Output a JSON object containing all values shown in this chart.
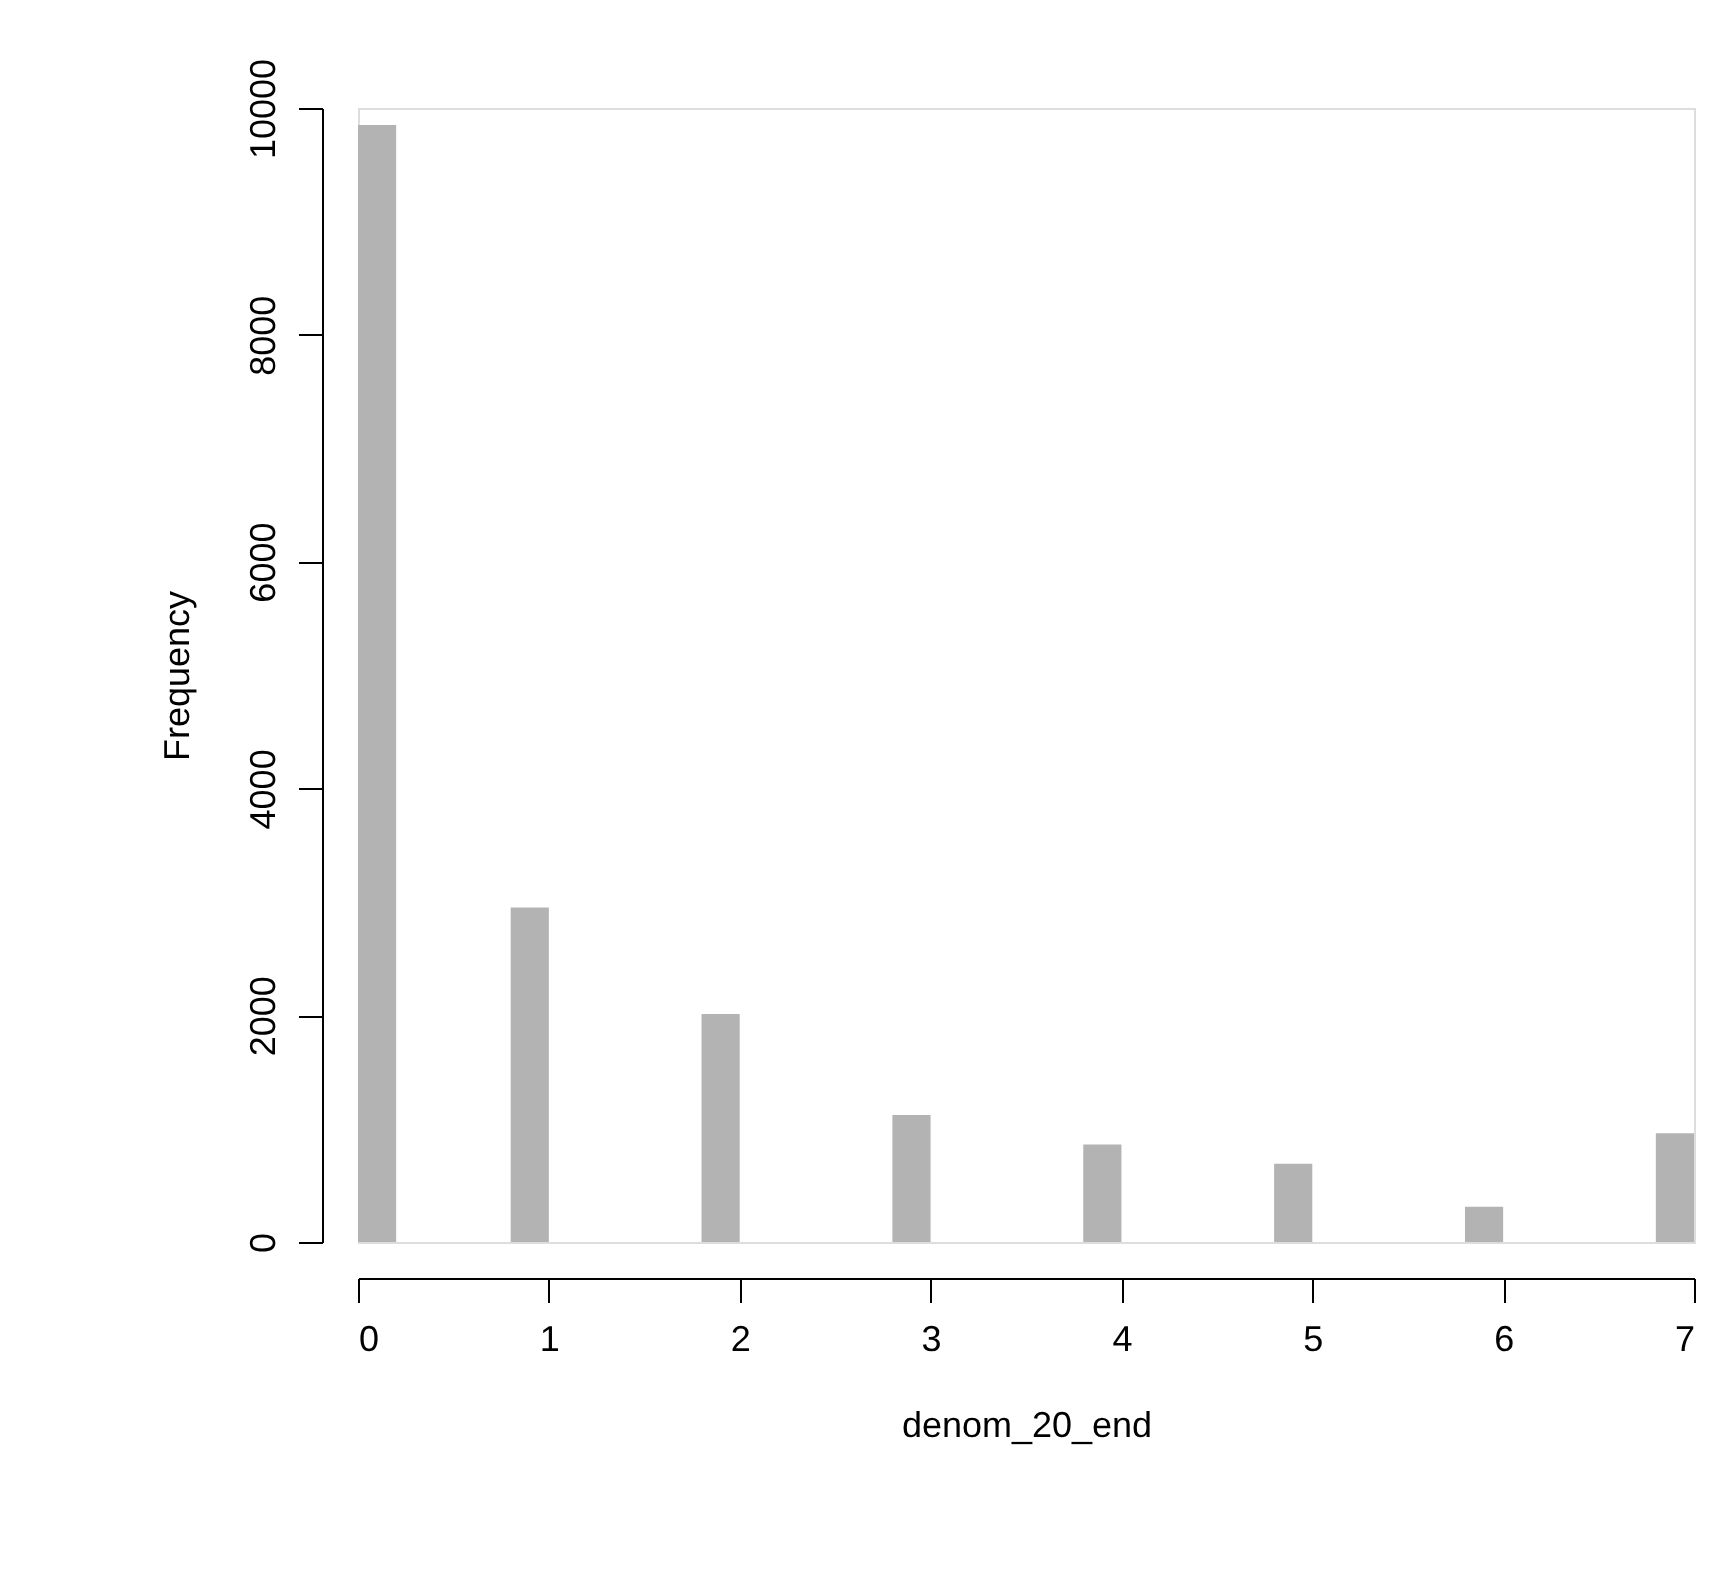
{
  "chart_data": {
    "type": "histogram",
    "xlabel": "denom_20_end",
    "ylabel": "Frequency",
    "color": "#b3b3b3",
    "bins": [
      0,
      0.2,
      0.4,
      0.6,
      0.8,
      1.0,
      1.2,
      1.4,
      1.6,
      1.8,
      2.0,
      2.2,
      2.4,
      2.6,
      2.8,
      3.0,
      3.2,
      3.4,
      3.6,
      3.8,
      4.0,
      4.2,
      4.4,
      4.6,
      4.8,
      5.0,
      5.2,
      5.4,
      5.6,
      5.8,
      6.0,
      6.2,
      6.4,
      6.6,
      6.8,
      7.0
    ],
    "values": [
      9850,
      0,
      0,
      0,
      2950,
      0,
      0,
      0,
      0,
      2010,
      0,
      0,
      0,
      0,
      1120,
      0,
      0,
      0,
      0,
      860,
      0,
      0,
      0,
      0,
      690,
      0,
      0,
      0,
      0,
      310,
      0,
      0,
      0,
      0,
      960
    ],
    "xlim": [
      0,
      7
    ],
    "xticks": [
      0,
      1,
      2,
      3,
      4,
      5,
      6,
      7
    ],
    "ylim": [
      0,
      10000
    ],
    "yticks": [
      0,
      2000,
      4000,
      6000,
      8000,
      10000
    ],
    "grid": false
  }
}
